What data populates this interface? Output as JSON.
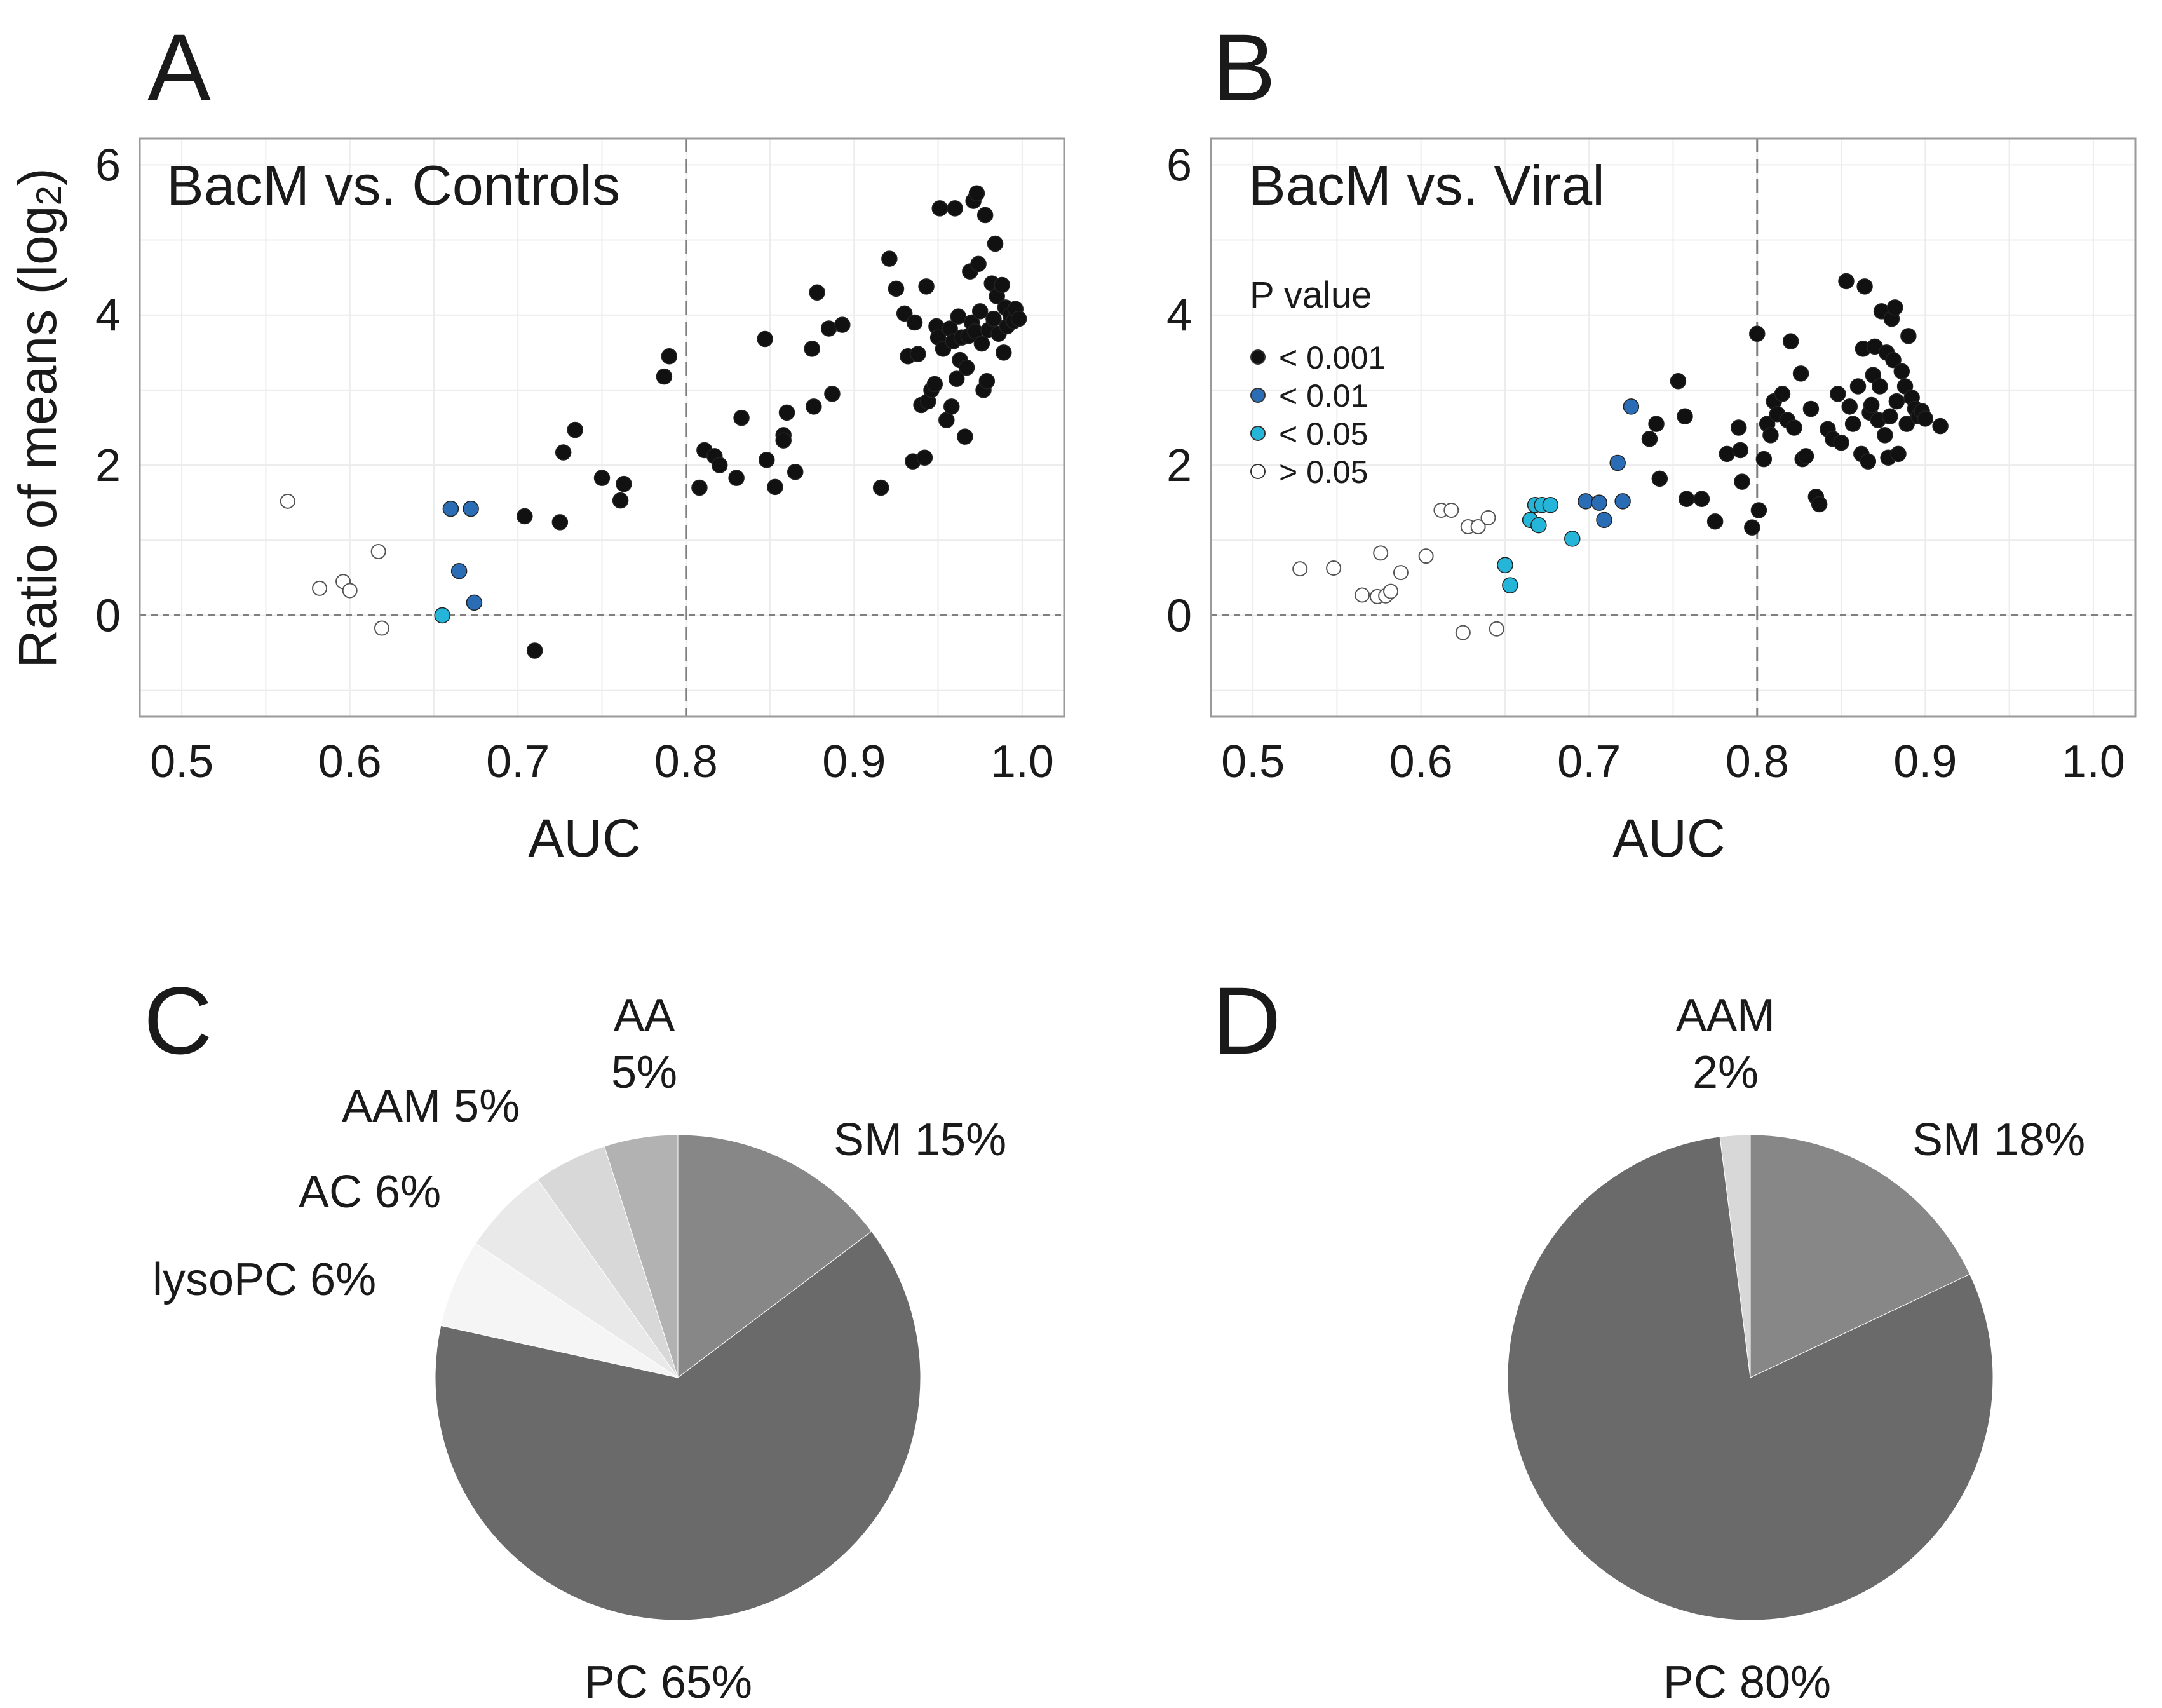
{
  "chart_data": [
    {
      "panel": "A",
      "type": "scatter",
      "title": "BacM vs. Controls",
      "xlabel": "AUC",
      "ylabel": "Ratio of means (log2)",
      "ylabel_main": "Ratio of means (log",
      "ylabel_sub": "2",
      "ylabel_end": ")",
      "xlim": [
        0.475,
        1.025
      ],
      "ylim": [
        -1.35,
        6.35
      ],
      "xticks": [
        "0.5",
        "0.6",
        "0.7",
        "0.8",
        "0.9",
        "1.0"
      ],
      "yticks": [
        "0",
        "2",
        "4",
        "6"
      ],
      "reference_lines": {
        "vertical_x": 0.8,
        "horizontal_y": 0
      },
      "points": [
        {
          "x": 0.563,
          "y": 1.52,
          "p": "ns"
        },
        {
          "x": 0.582,
          "y": 0.36,
          "p": "ns"
        },
        {
          "x": 0.596,
          "y": 0.45,
          "p": "ns"
        },
        {
          "x": 0.6,
          "y": 0.33,
          "p": "ns"
        },
        {
          "x": 0.617,
          "y": 0.85,
          "p": "ns"
        },
        {
          "x": 0.619,
          "y": -0.17,
          "p": "ns"
        },
        {
          "x": 0.655,
          "y": 0.0,
          "p": "p05"
        },
        {
          "x": 0.66,
          "y": 1.42,
          "p": "p01"
        },
        {
          "x": 0.672,
          "y": 1.42,
          "p": "p01"
        },
        {
          "x": 0.665,
          "y": 0.59,
          "p": "p01"
        },
        {
          "x": 0.674,
          "y": 0.17,
          "p": "p01"
        },
        {
          "x": 0.704,
          "y": 1.32,
          "p": "p001"
        },
        {
          "x": 0.71,
          "y": -0.47,
          "p": "p001"
        },
        {
          "x": 0.725,
          "y": 1.24,
          "p": "p001"
        },
        {
          "x": 0.727,
          "y": 2.17,
          "p": "p001"
        },
        {
          "x": 0.734,
          "y": 2.47,
          "p": "p001"
        },
        {
          "x": 0.75,
          "y": 1.83,
          "p": "p001"
        },
        {
          "x": 0.761,
          "y": 1.53,
          "p": "p001"
        },
        {
          "x": 0.763,
          "y": 1.75,
          "p": "p001"
        },
        {
          "x": 0.787,
          "y": 3.18,
          "p": "p001"
        },
        {
          "x": 0.79,
          "y": 3.45,
          "p": "p001"
        },
        {
          "x": 0.808,
          "y": 1.7,
          "p": "p001"
        },
        {
          "x": 0.811,
          "y": 2.2,
          "p": "p001"
        },
        {
          "x": 0.817,
          "y": 2.12,
          "p": "p001"
        },
        {
          "x": 0.82,
          "y": 2.0,
          "p": "p001"
        },
        {
          "x": 0.83,
          "y": 1.83,
          "p": "p001"
        },
        {
          "x": 0.833,
          "y": 2.63,
          "p": "p001"
        },
        {
          "x": 0.847,
          "y": 3.68,
          "p": "p001"
        },
        {
          "x": 0.848,
          "y": 2.07,
          "p": "p001"
        },
        {
          "x": 0.853,
          "y": 1.71,
          "p": "p001"
        },
        {
          "x": 0.858,
          "y": 2.4,
          "p": "p001"
        },
        {
          "x": 0.858,
          "y": 2.33,
          "p": "p001"
        },
        {
          "x": 0.86,
          "y": 2.7,
          "p": "p001"
        },
        {
          "x": 0.865,
          "y": 1.91,
          "p": "p001"
        },
        {
          "x": 0.875,
          "y": 3.55,
          "p": "p001"
        },
        {
          "x": 0.876,
          "y": 2.78,
          "p": "p001"
        },
        {
          "x": 0.878,
          "y": 4.3,
          "p": "p001"
        },
        {
          "x": 0.885,
          "y": 3.82,
          "p": "p001"
        },
        {
          "x": 0.887,
          "y": 2.95,
          "p": "p001"
        },
        {
          "x": 0.893,
          "y": 3.87,
          "p": "p001"
        },
        {
          "x": 0.916,
          "y": 1.7,
          "p": "p001"
        },
        {
          "x": 0.921,
          "y": 4.75,
          "p": "p001"
        },
        {
          "x": 0.925,
          "y": 4.35,
          "p": "p001"
        },
        {
          "x": 0.93,
          "y": 4.02,
          "p": "p001"
        },
        {
          "x": 0.932,
          "y": 3.45,
          "p": "p001"
        },
        {
          "x": 0.935,
          "y": 2.05,
          "p": "p001"
        },
        {
          "x": 0.936,
          "y": 3.9,
          "p": "p001"
        },
        {
          "x": 0.938,
          "y": 3.48,
          "p": "p001"
        },
        {
          "x": 0.94,
          "y": 2.8,
          "p": "p001"
        },
        {
          "x": 0.942,
          "y": 2.1,
          "p": "p001"
        },
        {
          "x": 0.943,
          "y": 4.38,
          "p": "p001"
        },
        {
          "x": 0.944,
          "y": 2.85,
          "p": "p001"
        },
        {
          "x": 0.946,
          "y": 3.0,
          "p": "p001"
        },
        {
          "x": 0.948,
          "y": 3.08,
          "p": "p001"
        },
        {
          "x": 0.949,
          "y": 3.85,
          "p": "p001"
        },
        {
          "x": 0.95,
          "y": 3.7,
          "p": "p001"
        },
        {
          "x": 0.951,
          "y": 5.42,
          "p": "p001"
        },
        {
          "x": 0.953,
          "y": 3.55,
          "p": "p001"
        },
        {
          "x": 0.955,
          "y": 2.6,
          "p": "p001"
        },
        {
          "x": 0.957,
          "y": 3.82,
          "p": "p001"
        },
        {
          "x": 0.958,
          "y": 2.78,
          "p": "p001"
        },
        {
          "x": 0.959,
          "y": 3.65,
          "p": "p001"
        },
        {
          "x": 0.96,
          "y": 5.42,
          "p": "p001"
        },
        {
          "x": 0.961,
          "y": 3.15,
          "p": "p001"
        },
        {
          "x": 0.962,
          "y": 3.98,
          "p": "p001"
        },
        {
          "x": 0.963,
          "y": 3.4,
          "p": "p001"
        },
        {
          "x": 0.964,
          "y": 3.7,
          "p": "p001"
        },
        {
          "x": 0.966,
          "y": 2.38,
          "p": "p001"
        },
        {
          "x": 0.967,
          "y": 3.3,
          "p": "p001"
        },
        {
          "x": 0.968,
          "y": 3.72,
          "p": "p001"
        },
        {
          "x": 0.969,
          "y": 4.58,
          "p": "p001"
        },
        {
          "x": 0.97,
          "y": 3.9,
          "p": "p001"
        },
        {
          "x": 0.971,
          "y": 5.52,
          "p": "p001"
        },
        {
          "x": 0.972,
          "y": 3.78,
          "p": "p001"
        },
        {
          "x": 0.973,
          "y": 5.62,
          "p": "p001"
        },
        {
          "x": 0.974,
          "y": 4.68,
          "p": "p001"
        },
        {
          "x": 0.975,
          "y": 4.05,
          "p": "p001"
        },
        {
          "x": 0.976,
          "y": 3.62,
          "p": "p001"
        },
        {
          "x": 0.977,
          "y": 3.0,
          "p": "p001"
        },
        {
          "x": 0.978,
          "y": 5.33,
          "p": "p001"
        },
        {
          "x": 0.979,
          "y": 3.12,
          "p": "p001"
        },
        {
          "x": 0.98,
          "y": 3.8,
          "p": "p001"
        },
        {
          "x": 0.982,
          "y": 4.42,
          "p": "p001"
        },
        {
          "x": 0.983,
          "y": 3.95,
          "p": "p001"
        },
        {
          "x": 0.984,
          "y": 4.95,
          "p": "p001"
        },
        {
          "x": 0.985,
          "y": 4.25,
          "p": "p001"
        },
        {
          "x": 0.986,
          "y": 3.75,
          "p": "p001"
        },
        {
          "x": 0.988,
          "y": 4.4,
          "p": "p001"
        },
        {
          "x": 0.989,
          "y": 3.5,
          "p": "p001"
        },
        {
          "x": 0.99,
          "y": 4.1,
          "p": "p001"
        },
        {
          "x": 0.991,
          "y": 3.85,
          "p": "p001"
        },
        {
          "x": 0.993,
          "y": 4.0,
          "p": "p001"
        },
        {
          "x": 0.995,
          "y": 3.92,
          "p": "p001"
        },
        {
          "x": 0.996,
          "y": 4.08,
          "p": "p001"
        },
        {
          "x": 0.998,
          "y": 3.95,
          "p": "p001"
        }
      ]
    },
    {
      "panel": "B",
      "type": "scatter",
      "title": "BacM vs. Viral",
      "xlabel": "AUC",
      "ylabel": "",
      "xlim": [
        0.475,
        1.025
      ],
      "ylim": [
        -1.35,
        6.35
      ],
      "xticks": [
        "0.5",
        "0.6",
        "0.7",
        "0.8",
        "0.9",
        "1.0"
      ],
      "yticks": [
        "0",
        "2",
        "4",
        "6"
      ],
      "reference_lines": {
        "vertical_x": 0.8,
        "horizontal_y": 0
      },
      "legend": {
        "title": "P value",
        "position": "top-left",
        "entries": [
          {
            "key": "p001",
            "label": "< 0.001"
          },
          {
            "key": "p01",
            "label": "< 0.01"
          },
          {
            "key": "p05",
            "label": "< 0.05"
          },
          {
            "key": "ns",
            "label": "> 0.05"
          }
        ]
      },
      "points": [
        {
          "x": 0.528,
          "y": 0.62,
          "p": "ns"
        },
        {
          "x": 0.548,
          "y": 0.63,
          "p": "ns"
        },
        {
          "x": 0.565,
          "y": 0.27,
          "p": "ns"
        },
        {
          "x": 0.574,
          "y": 0.25,
          "p": "ns"
        },
        {
          "x": 0.576,
          "y": 0.83,
          "p": "ns"
        },
        {
          "x": 0.579,
          "y": 0.26,
          "p": "ns"
        },
        {
          "x": 0.582,
          "y": 0.32,
          "p": "ns"
        },
        {
          "x": 0.588,
          "y": 0.57,
          "p": "ns"
        },
        {
          "x": 0.603,
          "y": 0.79,
          "p": "ns"
        },
        {
          "x": 0.612,
          "y": 1.4,
          "p": "ns"
        },
        {
          "x": 0.618,
          "y": 1.4,
          "p": "ns"
        },
        {
          "x": 0.625,
          "y": -0.23,
          "p": "ns"
        },
        {
          "x": 0.628,
          "y": 1.18,
          "p": "ns"
        },
        {
          "x": 0.634,
          "y": 1.18,
          "p": "ns"
        },
        {
          "x": 0.64,
          "y": 1.3,
          "p": "ns"
        },
        {
          "x": 0.645,
          "y": -0.18,
          "p": "ns"
        },
        {
          "x": 0.65,
          "y": 0.67,
          "p": "p05"
        },
        {
          "x": 0.653,
          "y": 0.4,
          "p": "p05"
        },
        {
          "x": 0.665,
          "y": 1.27,
          "p": "p05"
        },
        {
          "x": 0.668,
          "y": 1.47,
          "p": "p05"
        },
        {
          "x": 0.67,
          "y": 1.2,
          "p": "p05"
        },
        {
          "x": 0.672,
          "y": 1.47,
          "p": "p05"
        },
        {
          "x": 0.677,
          "y": 1.47,
          "p": "p05"
        },
        {
          "x": 0.69,
          "y": 1.02,
          "p": "p05"
        },
        {
          "x": 0.698,
          "y": 1.52,
          "p": "p01"
        },
        {
          "x": 0.706,
          "y": 1.5,
          "p": "p01"
        },
        {
          "x": 0.709,
          "y": 1.27,
          "p": "p01"
        },
        {
          "x": 0.717,
          "y": 2.03,
          "p": "p01"
        },
        {
          "x": 0.72,
          "y": 1.52,
          "p": "p01"
        },
        {
          "x": 0.725,
          "y": 2.78,
          "p": "p01"
        },
        {
          "x": 0.736,
          "y": 2.35,
          "p": "p001"
        },
        {
          "x": 0.74,
          "y": 2.55,
          "p": "p001"
        },
        {
          "x": 0.742,
          "y": 1.82,
          "p": "p001"
        },
        {
          "x": 0.753,
          "y": 3.12,
          "p": "p001"
        },
        {
          "x": 0.757,
          "y": 2.65,
          "p": "p001"
        },
        {
          "x": 0.758,
          "y": 1.55,
          "p": "p001"
        },
        {
          "x": 0.767,
          "y": 1.55,
          "p": "p001"
        },
        {
          "x": 0.775,
          "y": 1.25,
          "p": "p001"
        },
        {
          "x": 0.782,
          "y": 2.15,
          "p": "p001"
        },
        {
          "x": 0.789,
          "y": 2.5,
          "p": "p001"
        },
        {
          "x": 0.79,
          "y": 2.2,
          "p": "p001"
        },
        {
          "x": 0.791,
          "y": 1.78,
          "p": "p001"
        },
        {
          "x": 0.797,
          "y": 1.17,
          "p": "p001"
        },
        {
          "x": 0.8,
          "y": 3.75,
          "p": "p001"
        },
        {
          "x": 0.801,
          "y": 1.4,
          "p": "p001"
        },
        {
          "x": 0.804,
          "y": 2.08,
          "p": "p001"
        },
        {
          "x": 0.806,
          "y": 2.55,
          "p": "p001"
        },
        {
          "x": 0.808,
          "y": 2.4,
          "p": "p001"
        },
        {
          "x": 0.81,
          "y": 2.85,
          "p": "p001"
        },
        {
          "x": 0.812,
          "y": 2.68,
          "p": "p001"
        },
        {
          "x": 0.815,
          "y": 2.95,
          "p": "p001"
        },
        {
          "x": 0.818,
          "y": 2.6,
          "p": "p001"
        },
        {
          "x": 0.82,
          "y": 3.65,
          "p": "p001"
        },
        {
          "x": 0.822,
          "y": 2.5,
          "p": "p001"
        },
        {
          "x": 0.826,
          "y": 3.22,
          "p": "p001"
        },
        {
          "x": 0.827,
          "y": 2.08,
          "p": "p001"
        },
        {
          "x": 0.829,
          "y": 2.12,
          "p": "p001"
        },
        {
          "x": 0.832,
          "y": 2.75,
          "p": "p001"
        },
        {
          "x": 0.835,
          "y": 1.58,
          "p": "p001"
        },
        {
          "x": 0.837,
          "y": 1.48,
          "p": "p001"
        },
        {
          "x": 0.842,
          "y": 2.48,
          "p": "p001"
        },
        {
          "x": 0.845,
          "y": 2.35,
          "p": "p001"
        },
        {
          "x": 0.848,
          "y": 2.95,
          "p": "p001"
        },
        {
          "x": 0.85,
          "y": 2.3,
          "p": "p001"
        },
        {
          "x": 0.853,
          "y": 4.45,
          "p": "p001"
        },
        {
          "x": 0.855,
          "y": 2.78,
          "p": "p001"
        },
        {
          "x": 0.857,
          "y": 2.55,
          "p": "p001"
        },
        {
          "x": 0.86,
          "y": 3.05,
          "p": "p001"
        },
        {
          "x": 0.862,
          "y": 2.15,
          "p": "p001"
        },
        {
          "x": 0.863,
          "y": 3.55,
          "p": "p001"
        },
        {
          "x": 0.864,
          "y": 4.38,
          "p": "p001"
        },
        {
          "x": 0.866,
          "y": 2.05,
          "p": "p001"
        },
        {
          "x": 0.867,
          "y": 2.7,
          "p": "p001"
        },
        {
          "x": 0.868,
          "y": 2.8,
          "p": "p001"
        },
        {
          "x": 0.869,
          "y": 3.2,
          "p": "p001"
        },
        {
          "x": 0.87,
          "y": 3.58,
          "p": "p001"
        },
        {
          "x": 0.872,
          "y": 2.6,
          "p": "p001"
        },
        {
          "x": 0.873,
          "y": 3.05,
          "p": "p001"
        },
        {
          "x": 0.874,
          "y": 4.05,
          "p": "p001"
        },
        {
          "x": 0.876,
          "y": 2.4,
          "p": "p001"
        },
        {
          "x": 0.877,
          "y": 3.5,
          "p": "p001"
        },
        {
          "x": 0.878,
          "y": 2.1,
          "p": "p001"
        },
        {
          "x": 0.879,
          "y": 2.65,
          "p": "p001"
        },
        {
          "x": 0.88,
          "y": 3.95,
          "p": "p001"
        },
        {
          "x": 0.881,
          "y": 3.4,
          "p": "p001"
        },
        {
          "x": 0.882,
          "y": 4.1,
          "p": "p001"
        },
        {
          "x": 0.883,
          "y": 2.85,
          "p": "p001"
        },
        {
          "x": 0.884,
          "y": 2.15,
          "p": "p001"
        },
        {
          "x": 0.886,
          "y": 3.25,
          "p": "p001"
        },
        {
          "x": 0.888,
          "y": 3.05,
          "p": "p001"
        },
        {
          "x": 0.889,
          "y": 2.55,
          "p": "p001"
        },
        {
          "x": 0.89,
          "y": 3.72,
          "p": "p001"
        },
        {
          "x": 0.892,
          "y": 2.9,
          "p": "p001"
        },
        {
          "x": 0.894,
          "y": 2.75,
          "p": "p001"
        },
        {
          "x": 0.896,
          "y": 2.65,
          "p": "p001"
        },
        {
          "x": 0.898,
          "y": 2.72,
          "p": "p001"
        },
        {
          "x": 0.9,
          "y": 2.62,
          "p": "p001"
        },
        {
          "x": 0.909,
          "y": 2.52,
          "p": "p001"
        }
      ]
    },
    {
      "panel": "C",
      "type": "pie",
      "title": "",
      "slices": [
        {
          "name": "SM",
          "value": 15,
          "label": "SM 15%",
          "color": "#878787"
        },
        {
          "name": "PC",
          "value": 65,
          "label": "PC 65%",
          "color": "#6a6a6a"
        },
        {
          "name": "lysoPC",
          "value": 6,
          "label": "lysoPC 6%",
          "color": "#f5f5f5"
        },
        {
          "name": "AC",
          "value": 6,
          "label": "AC 6%",
          "color": "#e9e9e9"
        },
        {
          "name": "AAM",
          "value": 5,
          "label": "AAM 5%",
          "color": "#d8d8d8"
        },
        {
          "name": "AA",
          "value": 5,
          "label_line1": "AA",
          "label_line2": "5%",
          "color": "#b2b2b2"
        }
      ]
    },
    {
      "panel": "D",
      "type": "pie",
      "title": "",
      "slices": [
        {
          "name": "SM",
          "value": 18,
          "label": "SM 18%",
          "color": "#878787"
        },
        {
          "name": "PC",
          "value": 80,
          "label": "PC 80%",
          "color": "#6a6a6a"
        },
        {
          "name": "AAM",
          "value": 2,
          "label_line1": "AAM",
          "label_line2": "2%",
          "color": "#d8d8d8"
        }
      ]
    }
  ],
  "colors": {
    "p001": "#111111",
    "p01": "#2a6db5",
    "p05": "#24b5d8",
    "ns": "#ffffff",
    "frame": "#9a9a9a",
    "grid": "#ececec",
    "refline": "#808080"
  }
}
